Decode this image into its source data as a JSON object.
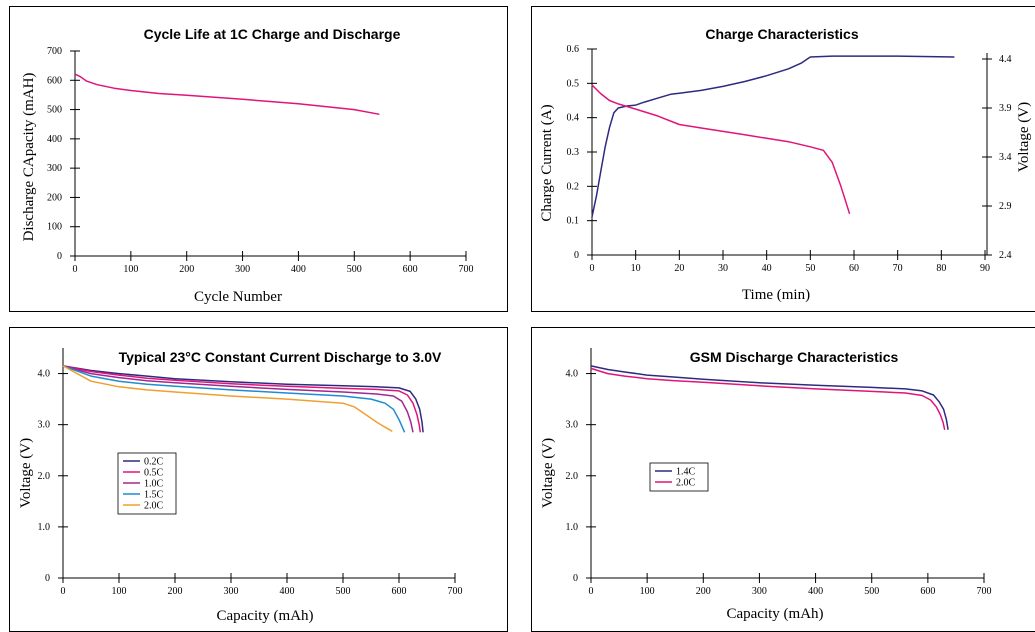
{
  "colors": {
    "navy": "#2e2a80",
    "magenta": "#e0147a",
    "purple": "#a02890",
    "blue": "#1e8cd2",
    "orange": "#f0a030"
  },
  "chart_data": [
    {
      "id": "p1",
      "type": "line",
      "title": "Cycle Life at 1C Charge and Discharge",
      "xlabel": "Cycle Number",
      "ylabel": "Discharge CApacity (mAH)",
      "xlim": [
        0,
        700
      ],
      "ylim": [
        0,
        700
      ],
      "xticks": [
        "0",
        "100",
        "200",
        "300",
        "400",
        "500",
        "600",
        "700"
      ],
      "yticks": [
        "0",
        "100",
        "200",
        "300",
        "400",
        "500",
        "600",
        "700"
      ],
      "legend": [],
      "series": [
        {
          "color": "magenta",
          "x": [
            0,
            10,
            20,
            40,
            70,
            100,
            150,
            200,
            300,
            400,
            500,
            545
          ],
          "y": [
            621,
            612,
            598,
            585,
            573,
            565,
            555,
            549,
            535,
            520,
            500,
            484
          ]
        }
      ]
    },
    {
      "id": "p2",
      "type": "line",
      "title": "Charge Characteristics",
      "xlabel": "Time (min)",
      "ylabel": "Charge Current (A)",
      "y2label": "Voltage (V)",
      "xlim": [
        0,
        90
      ],
      "ylim": [
        0,
        0.6
      ],
      "y2lim": [
        2.4,
        4.4
      ],
      "xticks": [
        "0",
        "10",
        "20",
        "30",
        "40",
        "50",
        "60",
        "70",
        "80",
        "90"
      ],
      "yticks": [
        "0",
        "0.1",
        "0.2",
        "0.3",
        "0.4",
        "0.5",
        "0.6"
      ],
      "y2ticks": [
        "2.4",
        "2.9",
        "3.4",
        "3.9",
        "4.4"
      ],
      "legend": [],
      "series": [
        {
          "color": "navy",
          "axis": "y2",
          "x": [
            0,
            1,
            2,
            3,
            4,
            5,
            6,
            8,
            10,
            12,
            15,
            18,
            20,
            25,
            30,
            35,
            40,
            45,
            48,
            50,
            55,
            60,
            70,
            83
          ],
          "y": [
            2.79,
            3.0,
            3.25,
            3.5,
            3.7,
            3.85,
            3.9,
            3.92,
            3.93,
            3.96,
            4.0,
            4.04,
            4.05,
            4.08,
            4.12,
            4.17,
            4.23,
            4.3,
            4.36,
            4.42,
            4.43,
            4.43,
            4.43,
            4.42
          ]
        },
        {
          "color": "magenta",
          "axis": "y",
          "x": [
            0,
            2,
            4,
            6,
            10,
            15,
            20,
            25,
            30,
            35,
            40,
            45,
            50,
            53,
            55,
            57,
            59
          ],
          "y": [
            0.495,
            0.47,
            0.45,
            0.44,
            0.425,
            0.405,
            0.38,
            0.37,
            0.36,
            0.35,
            0.34,
            0.33,
            0.315,
            0.305,
            0.27,
            0.2,
            0.12
          ]
        }
      ]
    },
    {
      "id": "p3",
      "type": "line",
      "title": "Typical 23°C Constant Current Discharge to 3.0V",
      "xlabel": "Capacity (mAh)",
      "ylabel": "Voltage (V)",
      "xlim": [
        0,
        700
      ],
      "ylim": [
        0,
        4.5
      ],
      "xticks": [
        "0",
        "100",
        "200",
        "300",
        "400",
        "500",
        "600",
        "700"
      ],
      "yticks": [
        "0",
        "1.0",
        "2.0",
        "3.0",
        "4.0"
      ],
      "legend": [
        "0.2C",
        "0.5C",
        "1.0C",
        "1.5C",
        "2.0C"
      ],
      "series": [
        {
          "name": "0.2C",
          "color": "navy",
          "x": [
            0,
            50,
            100,
            150,
            200,
            300,
            400,
            500,
            560,
            600,
            620,
            630,
            637,
            641,
            643
          ],
          "y": [
            4.15,
            4.06,
            4.0,
            3.95,
            3.9,
            3.84,
            3.79,
            3.76,
            3.74,
            3.72,
            3.65,
            3.5,
            3.3,
            3.05,
            2.85
          ]
        },
        {
          "name": "0.5C",
          "color": "magenta",
          "x": [
            0,
            50,
            100,
            150,
            200,
            300,
            400,
            500,
            560,
            600,
            615,
            625,
            632,
            636,
            638
          ],
          "y": [
            4.15,
            4.04,
            3.97,
            3.91,
            3.87,
            3.8,
            3.75,
            3.71,
            3.69,
            3.66,
            3.58,
            3.42,
            3.2,
            3.0,
            2.85
          ]
        },
        {
          "name": "1.0C",
          "color": "purple",
          "x": [
            0,
            50,
            100,
            150,
            200,
            300,
            400,
            500,
            560,
            590,
            605,
            615,
            621,
            625
          ],
          "y": [
            4.15,
            4.0,
            3.92,
            3.86,
            3.82,
            3.75,
            3.69,
            3.64,
            3.6,
            3.56,
            3.46,
            3.25,
            3.05,
            2.85
          ]
        },
        {
          "name": "1.5C",
          "color": "blue",
          "x": [
            0,
            50,
            100,
            150,
            200,
            300,
            400,
            500,
            550,
            575,
            590,
            600,
            610
          ],
          "y": [
            4.15,
            3.95,
            3.85,
            3.79,
            3.75,
            3.68,
            3.62,
            3.56,
            3.5,
            3.42,
            3.3,
            3.1,
            2.85
          ]
        },
        {
          "name": "2.0C",
          "color": "orange",
          "x": [
            0,
            50,
            100,
            150,
            200,
            300,
            400,
            500,
            520,
            540,
            560,
            575,
            588
          ],
          "y": [
            4.15,
            3.85,
            3.74,
            3.68,
            3.64,
            3.56,
            3.5,
            3.42,
            3.35,
            3.2,
            3.05,
            2.95,
            2.87
          ]
        }
      ]
    },
    {
      "id": "p4",
      "type": "line",
      "title": "GSM Discharge Characteristics",
      "xlabel": "Capacity (mAh)",
      "ylabel": "Voltage (V)",
      "xlim": [
        0,
        700
      ],
      "ylim": [
        0,
        4.5
      ],
      "xticks": [
        "0",
        "100",
        "200",
        "300",
        "400",
        "500",
        "600",
        "700"
      ],
      "yticks": [
        "0",
        "1.0",
        "2.0",
        "3.0",
        "4.0"
      ],
      "legend": [
        "1.4C",
        "2.0C"
      ],
      "series": [
        {
          "name": "1.4C",
          "color": "navy",
          "x": [
            0,
            30,
            60,
            100,
            150,
            200,
            300,
            400,
            500,
            560,
            590,
            610,
            620,
            628,
            633,
            636
          ],
          "y": [
            4.15,
            4.08,
            4.03,
            3.97,
            3.93,
            3.89,
            3.82,
            3.77,
            3.73,
            3.7,
            3.66,
            3.58,
            3.45,
            3.3,
            3.1,
            2.9
          ]
        },
        {
          "name": "2.0C",
          "color": "magenta",
          "x": [
            0,
            30,
            60,
            100,
            150,
            200,
            300,
            400,
            500,
            560,
            590,
            605,
            615,
            622,
            627,
            630
          ],
          "y": [
            4.1,
            4.0,
            3.95,
            3.9,
            3.86,
            3.83,
            3.76,
            3.7,
            3.65,
            3.62,
            3.57,
            3.48,
            3.35,
            3.2,
            3.05,
            2.9
          ]
        }
      ]
    }
  ]
}
